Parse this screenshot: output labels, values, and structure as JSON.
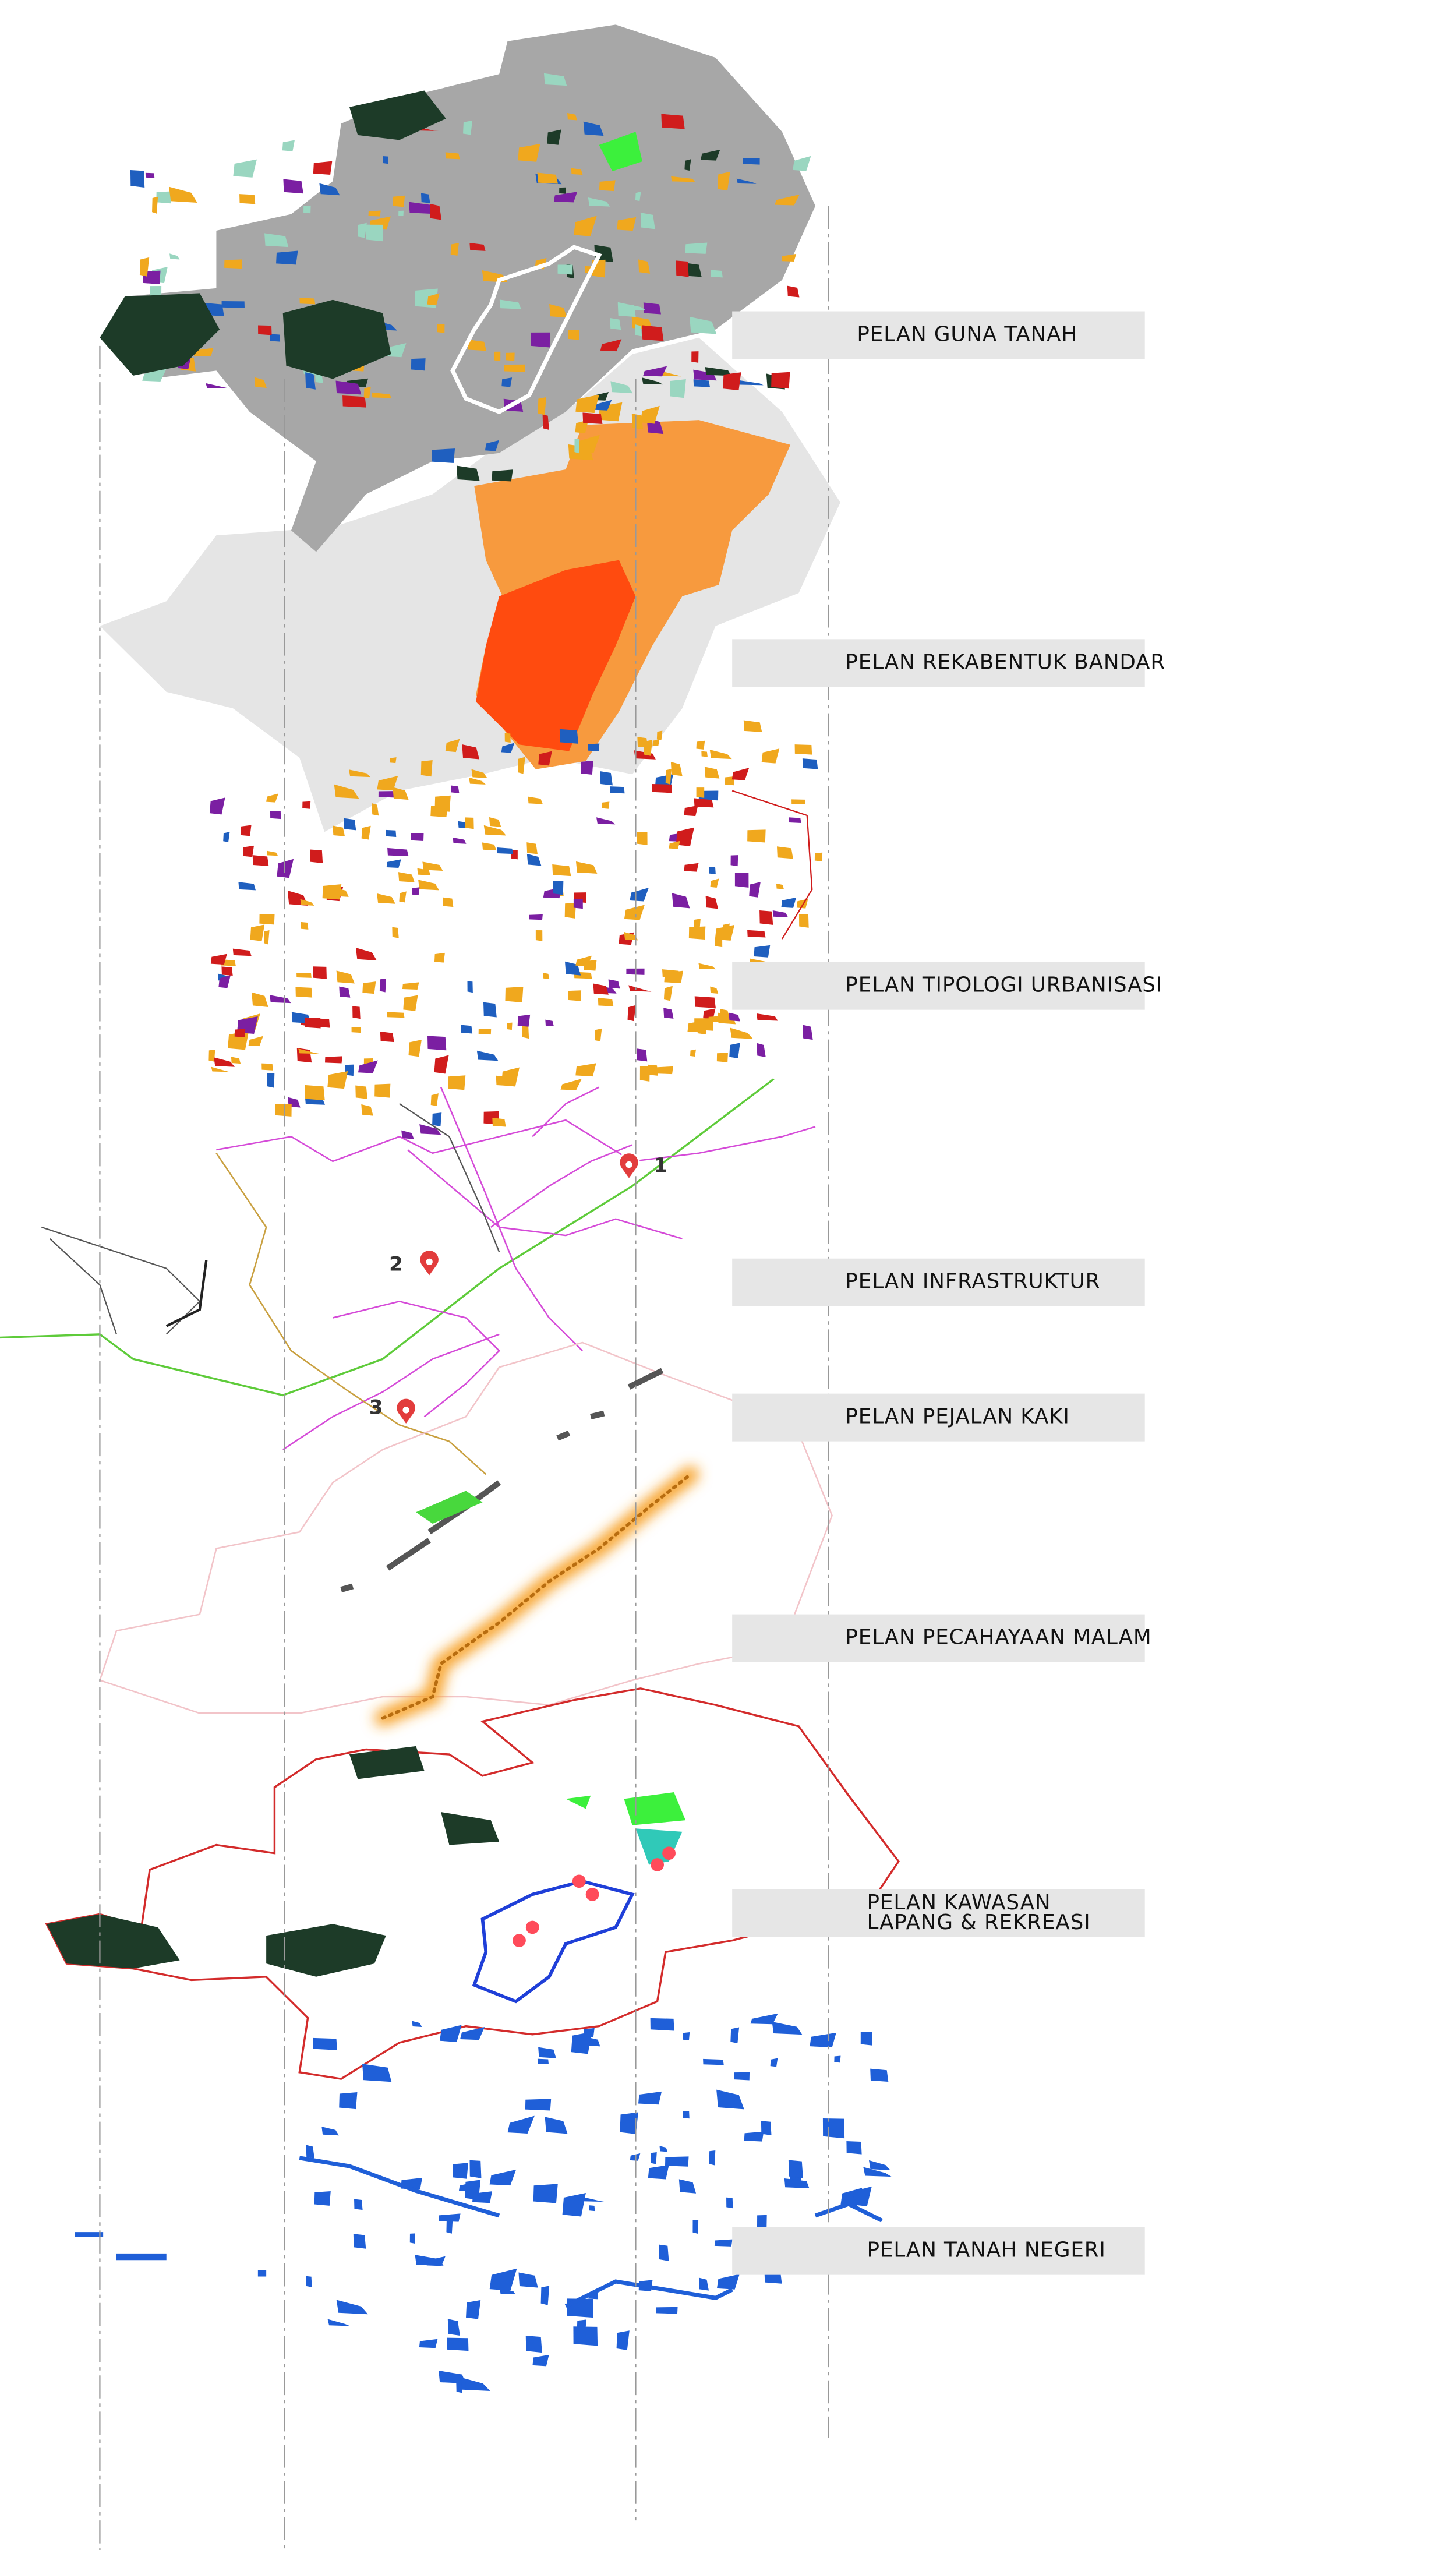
{
  "layers": [
    {
      "label": [
        "PELAN GUNA TANAH"
      ]
    },
    {
      "label": [
        "PELAN REKABENTUK BANDAR"
      ]
    },
    {
      "label": [
        "PELAN TIPOLOGI URBANISASI"
      ]
    },
    {
      "label": [
        "PELAN INFRASTRUKTUR"
      ]
    },
    {
      "label": [
        "PELAN PEJALAN KAKI"
      ]
    },
    {
      "label": [
        "PELAN PECAHAYAAN MALAM"
      ]
    },
    {
      "label": [
        "PELAN KAWASAN",
        "LAPANG & REKREASI"
      ]
    },
    {
      "label": [
        "PELAN TANAH NEGERI"
      ]
    }
  ],
  "markers": [
    "1",
    "2",
    "3"
  ]
}
